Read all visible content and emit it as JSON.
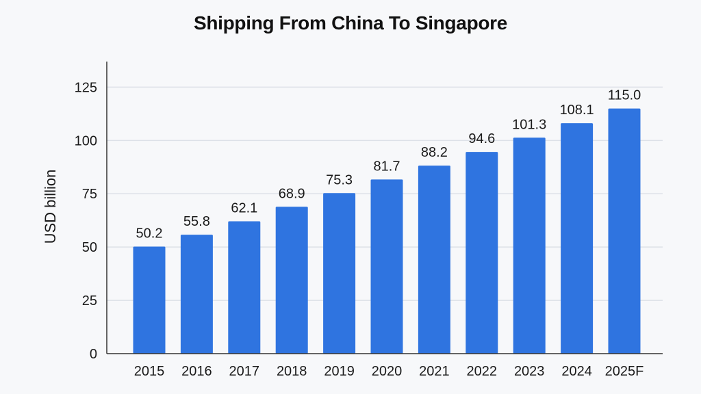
{
  "chart_data": {
    "type": "bar",
    "title": "Shipping From China To Singapore",
    "xlabel": "",
    "ylabel": "USD billion",
    "categories": [
      "2015",
      "2016",
      "2017",
      "2018",
      "2019",
      "2020",
      "2021",
      "2022",
      "2023",
      "2024",
      "2025F"
    ],
    "values": [
      50.2,
      55.8,
      62.1,
      68.9,
      75.3,
      81.7,
      88.2,
      94.6,
      101.3,
      108.1,
      115.0
    ],
    "data_labels": [
      "50.2",
      "55.8",
      "62.1",
      "68.9",
      "75.3",
      "81.7",
      "88.2",
      "94.6",
      "101.3",
      "108.1",
      "115.0"
    ],
    "ylim": [
      0,
      137
    ],
    "yticks": [
      0,
      25,
      50,
      75,
      100,
      125
    ],
    "grid": true,
    "legend": "none",
    "bar_color": "#2f74e0"
  }
}
